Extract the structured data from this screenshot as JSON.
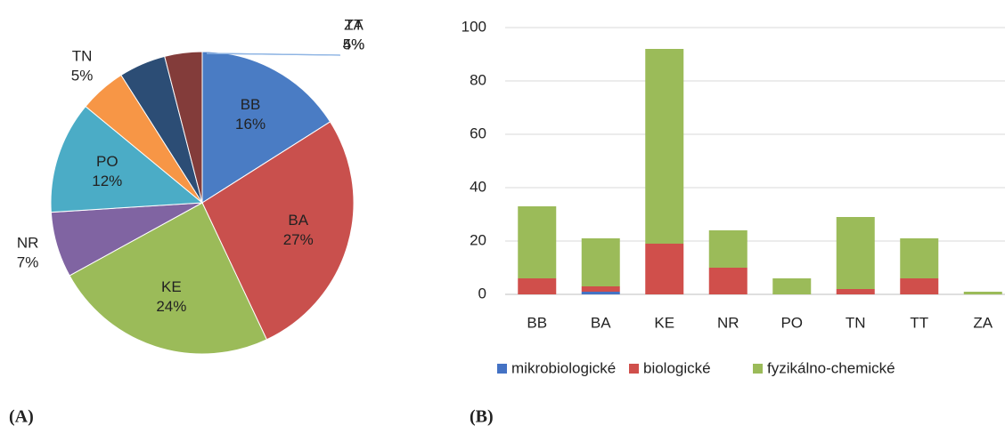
{
  "panels": [
    "(A)",
    "(B)"
  ],
  "chart_data": [
    {
      "type": "pie",
      "categories": [
        "BB",
        "BA",
        "KE",
        "NR",
        "PO",
        "TN",
        "TT",
        "ZA"
      ],
      "values": [
        16,
        27,
        24,
        7,
        12,
        5,
        5,
        4
      ],
      "value_labels": [
        "16%",
        "27%",
        "24%",
        "7%",
        "12%",
        "5%",
        "5%",
        "4%"
      ],
      "colors": [
        "#4a7cc4",
        "#c9504d",
        "#9bbb59",
        "#8064a2",
        "#4bacc6",
        "#f79646",
        "#2c4d75",
        "#833c3a"
      ]
    },
    {
      "type": "bar",
      "stacked": true,
      "categories": [
        "BB",
        "BA",
        "KE",
        "NR",
        "PO",
        "TN",
        "TT",
        "ZA"
      ],
      "series": [
        {
          "name": "mikrobiologické",
          "color": "#4472c4",
          "values": [
            0,
            1,
            0,
            0,
            0,
            0,
            0,
            0
          ]
        },
        {
          "name": "biologické",
          "color": "#d04f4b",
          "values": [
            6,
            2,
            19,
            10,
            0,
            2,
            6,
            0
          ]
        },
        {
          "name": "fyzikálno-chemické",
          "color": "#9bbb59",
          "values": [
            27,
            18,
            73,
            14,
            6,
            27,
            15,
            1
          ]
        }
      ],
      "ylim": [
        0,
        100
      ],
      "yticks": [
        0,
        20,
        40,
        60,
        80,
        100
      ],
      "grid": true,
      "legend": "bottom"
    }
  ]
}
